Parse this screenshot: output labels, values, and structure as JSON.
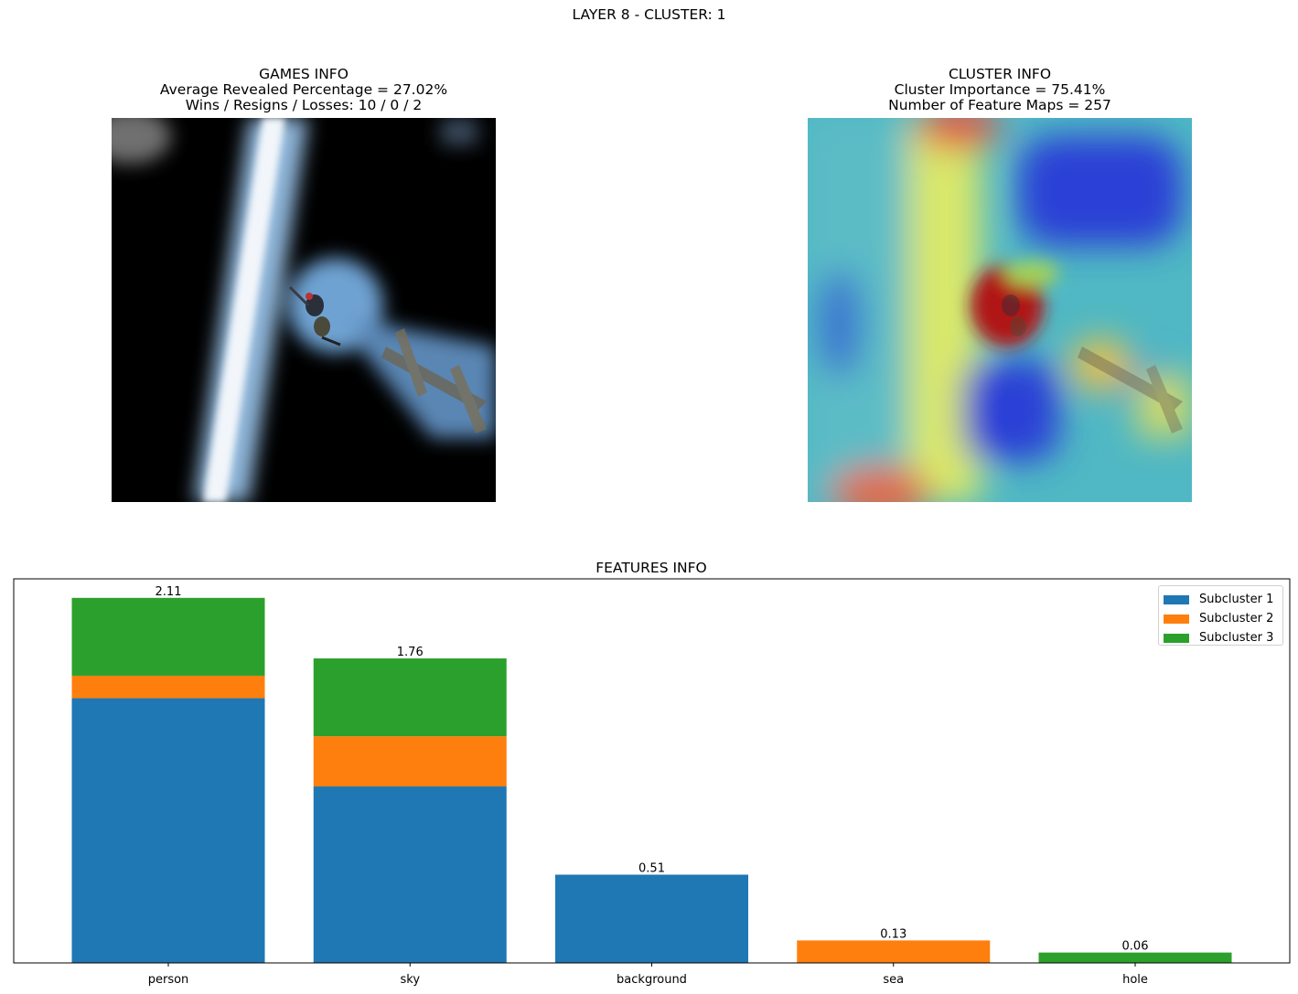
{
  "suptitle": "LAYER 8 - CLUSTER: 1",
  "games_info": {
    "title": "GAMES INFO",
    "line1": "Average Revealed Percentage = 27.02%",
    "line2": "Wins / Resigns / Losses: 10 / 0 / 2"
  },
  "cluster_info": {
    "title": "CLUSTER INFO",
    "line1": "Cluster Importance = 75.41%",
    "line2": "Number of Feature Maps = 257"
  },
  "colors": {
    "subcluster_1": "#1f77b4",
    "subcluster_2": "#ff7f0e",
    "subcluster_3": "#2ca02c"
  },
  "chart_data": {
    "type": "bar",
    "stacked": true,
    "title": "FEATURES INFO",
    "xlabel": "",
    "ylabel": "",
    "ylim": [
      0,
      2.22
    ],
    "y_ticks_visible": false,
    "grid": false,
    "legend_position": "top-right",
    "categories": [
      "person",
      "sky",
      "background",
      "sea",
      "hole"
    ],
    "totals": [
      2.11,
      1.76,
      0.51,
      0.13,
      0.06
    ],
    "total_labels": [
      "2.11",
      "1.76",
      "0.51",
      "0.13",
      "0.06"
    ],
    "series": [
      {
        "name": "Subcluster 1",
        "color": "#1f77b4",
        "values": [
          1.53,
          1.02,
          0.51,
          0.0,
          0.0
        ]
      },
      {
        "name": "Subcluster 2",
        "color": "#ff7f0e",
        "values": [
          0.13,
          0.29,
          0.0,
          0.13,
          0.0
        ]
      },
      {
        "name": "Subcluster 3",
        "color": "#2ca02c",
        "values": [
          0.45,
          0.45,
          0.0,
          0.0,
          0.06
        ]
      }
    ]
  }
}
